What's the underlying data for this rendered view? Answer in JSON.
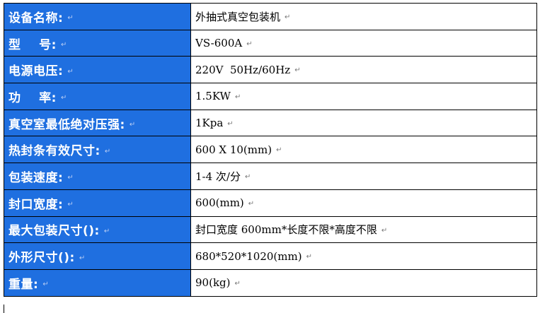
{
  "paragraph_mark": "↵",
  "rows": [
    {
      "label": "设备名称:",
      "value": "外抽式真空包装机"
    },
    {
      "label": "型    号:",
      "value": "VS-600A"
    },
    {
      "label": "电源电压:",
      "value": "220V  50Hz/60Hz"
    },
    {
      "label": "功    率:",
      "value": "1.5KW"
    },
    {
      "label": "真空室最低绝对压强:",
      "value": "1Kpa"
    },
    {
      "label": "热封条有效尺寸:",
      "value": "600 X 10(mm)"
    },
    {
      "label": "包装速度:",
      "value": "1-4 次/分"
    },
    {
      "label": "封口宽度:",
      "value": "600(mm)"
    },
    {
      "label": "最大包装尺寸():",
      "value": "封口宽度 600mm*长度不限*高度不限"
    },
    {
      "label": "外形尺寸():",
      "value": "680*520*1020(mm)"
    },
    {
      "label": "重量:",
      "value": "90(kg)"
    }
  ],
  "colors": {
    "label_bg": "#1f6fe0",
    "label_text": "#ffffff",
    "border": "#000000"
  }
}
